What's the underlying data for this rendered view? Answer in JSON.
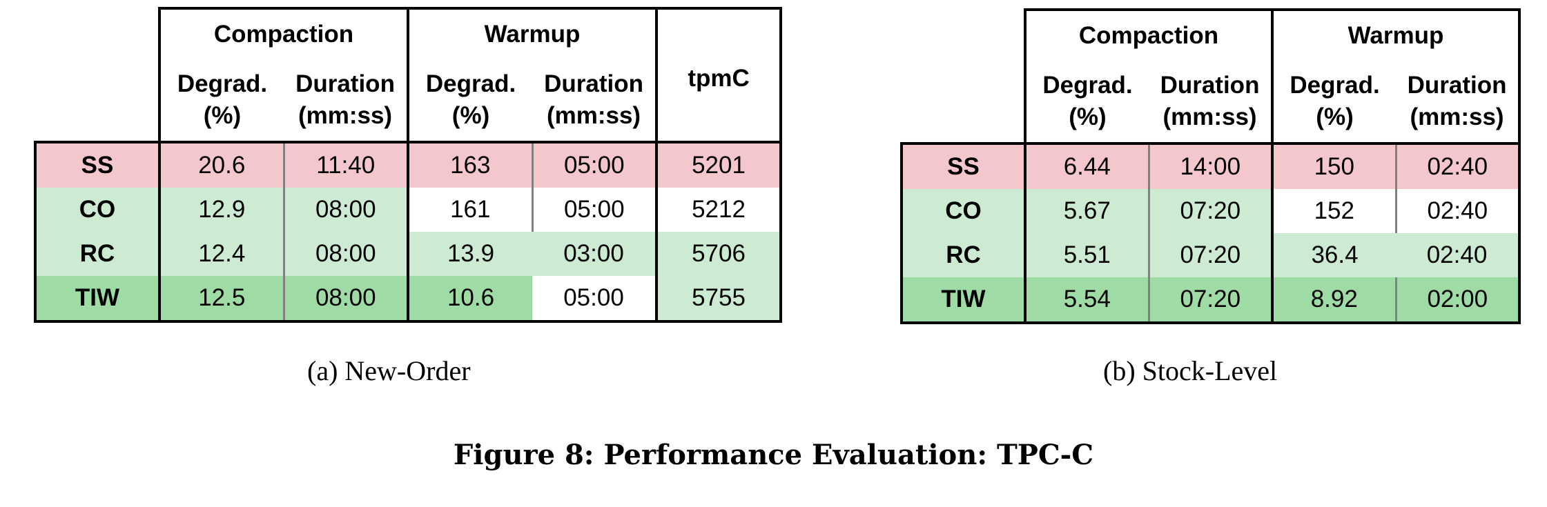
{
  "figure_caption": "Figure 8: Performance Evaluation: TPC-C",
  "colors": {
    "red": "#f4c7cd",
    "light_green": "#cdebd2",
    "green": "#9fdba4",
    "white": "#ffffff"
  },
  "tableA": {
    "caption": "(a) New-Order",
    "group_compaction": "Compaction",
    "group_warmup": "Warmup",
    "col_degrad": "Degrad.",
    "col_degrad_unit": "(%)",
    "col_duration": "Duration",
    "col_duration_unit": "(mm:ss)",
    "col_tpmc": "tpmC",
    "rows": [
      {
        "label": "SS",
        "c_deg": "20.6",
        "c_dur": "11:40",
        "w_deg": "163",
        "w_dur": "05:00",
        "tpmc": "5201"
      },
      {
        "label": "CO",
        "c_deg": "12.9",
        "c_dur": "08:00",
        "w_deg": "161",
        "w_dur": "05:00",
        "tpmc": "5212"
      },
      {
        "label": "RC",
        "c_deg": "12.4",
        "c_dur": "08:00",
        "w_deg": "13.9",
        "w_dur": "03:00",
        "tpmc": "5706"
      },
      {
        "label": "TIW",
        "c_deg": "12.5",
        "c_dur": "08:00",
        "w_deg": "10.6",
        "w_dur": "05:00",
        "tpmc": "5755"
      }
    ]
  },
  "tableB": {
    "caption": "(b) Stock-Level",
    "group_compaction": "Compaction",
    "group_warmup": "Warmup",
    "col_degrad": "Degrad.",
    "col_degrad_unit": "(%)",
    "col_duration": "Duration",
    "col_duration_unit": "(mm:ss)",
    "rows": [
      {
        "label": "SS",
        "c_deg": "6.44",
        "c_dur": "14:00",
        "w_deg": "150",
        "w_dur": "02:40"
      },
      {
        "label": "CO",
        "c_deg": "5.67",
        "c_dur": "07:20",
        "w_deg": "152",
        "w_dur": "02:40"
      },
      {
        "label": "RC",
        "c_deg": "5.51",
        "c_dur": "07:20",
        "w_deg": "36.4",
        "w_dur": "02:40"
      },
      {
        "label": "TIW",
        "c_deg": "5.54",
        "c_dur": "07:20",
        "w_deg": "8.92",
        "w_dur": "02:00"
      }
    ]
  }
}
